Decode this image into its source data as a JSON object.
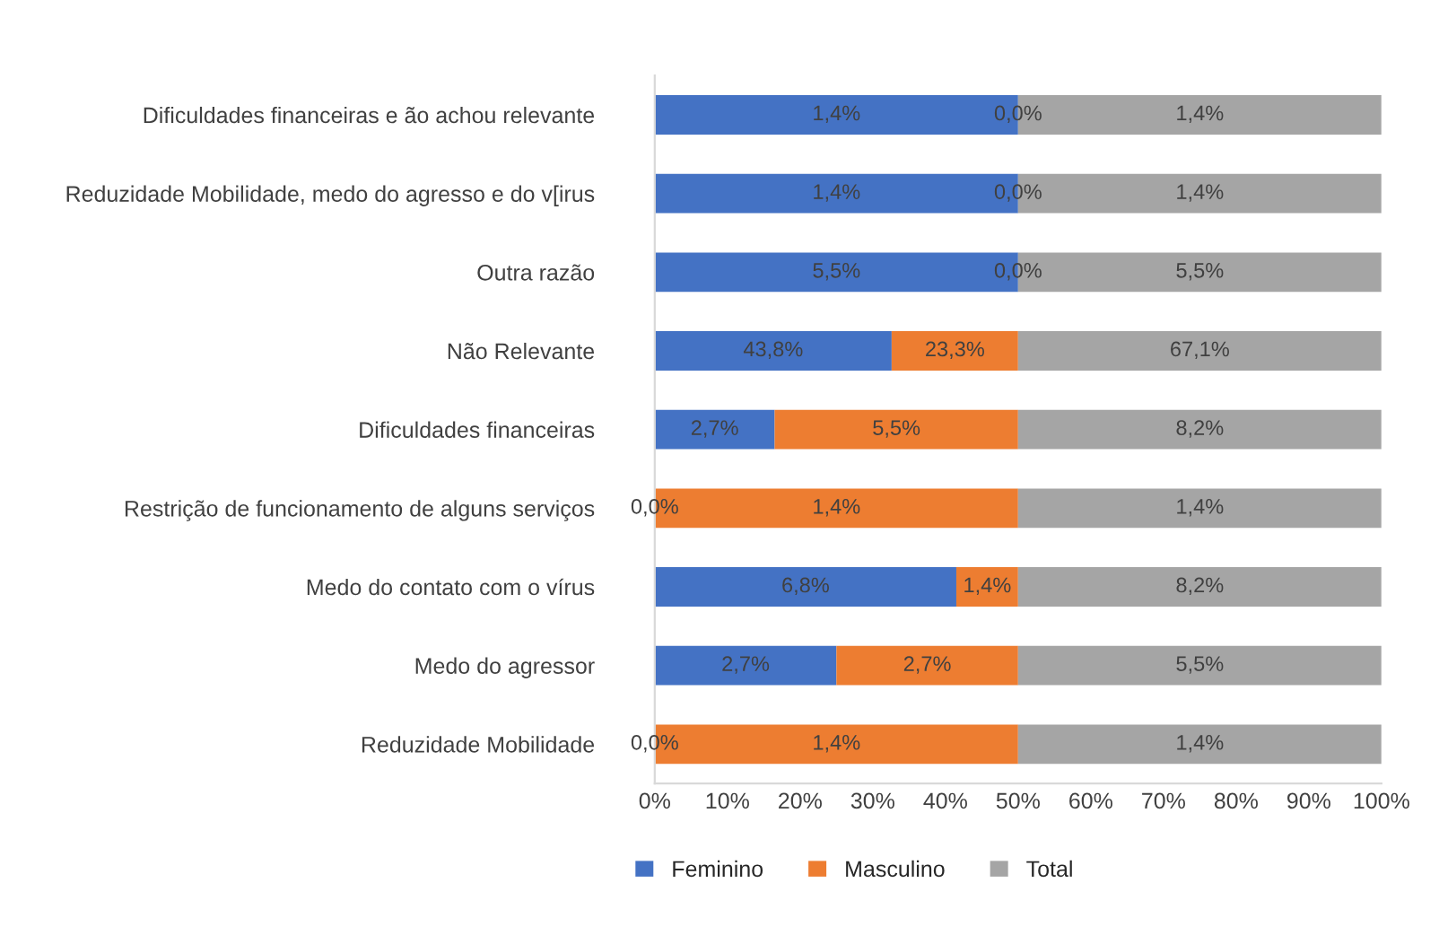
{
  "chart_data": {
    "type": "bar",
    "orientation": "horizontal",
    "stacked": true,
    "categories": [
      "Dificuldades financeiras e ão achou relevante",
      "Reduzidade Mobilidade, medo do agresso e do v[irus",
      "Outra razão",
      "Não Relevante",
      "Dificuldades financeiras",
      "Restrição de funcionamento de alguns serviços",
      "Medo do contato com o vírus",
      "Medo do agressor",
      "Reduzidade Mobilidade"
    ],
    "series": [
      {
        "name": "Feminino",
        "color": "#4472c4",
        "values": [
          50,
          50,
          50,
          32.6,
          16.5,
          0,
          41.5,
          25,
          0
        ]
      },
      {
        "name": "Masculino",
        "color": "#ed7d31",
        "values": [
          0,
          0,
          0,
          17.4,
          33.5,
          50,
          8.5,
          25,
          50
        ]
      },
      {
        "name": "Total",
        "color": "#a5a5a5",
        "values": [
          50,
          50,
          50,
          50,
          50,
          50,
          50,
          50,
          50
        ]
      }
    ],
    "annotations": [
      "1,4%",
      "0,0%",
      "1,4%",
      "1,4%",
      "0,0%",
      "1,4%",
      "5,5%",
      "0,0%",
      "5,5%",
      "43,8%",
      "23,3%",
      "67,1%",
      "2,7%",
      "5,5%",
      "8,2%",
      "0,0%",
      "1,4%",
      "1,4%",
      "6,8%",
      "1,4%",
      "8,2%",
      "2,7%",
      "2,7%",
      "5,5%",
      "0,0%",
      "1,4%",
      "1,4%"
    ],
    "xlim": [
      0,
      100
    ],
    "xticks": [
      {
        "value": 0,
        "label": "0%"
      },
      {
        "value": 10,
        "label": "10%"
      },
      {
        "value": 20,
        "label": "20%"
      },
      {
        "value": 30,
        "label": "30%"
      },
      {
        "value": 40,
        "label": "40%"
      },
      {
        "value": 50,
        "label": "50%"
      },
      {
        "value": 60,
        "label": "60%"
      },
      {
        "value": 70,
        "label": "70%"
      },
      {
        "value": 80,
        "label": "80%"
      },
      {
        "value": 90,
        "label": "90%"
      },
      {
        "value": 100,
        "label": "100%"
      }
    ],
    "grid": false,
    "legend": "bottom"
  }
}
